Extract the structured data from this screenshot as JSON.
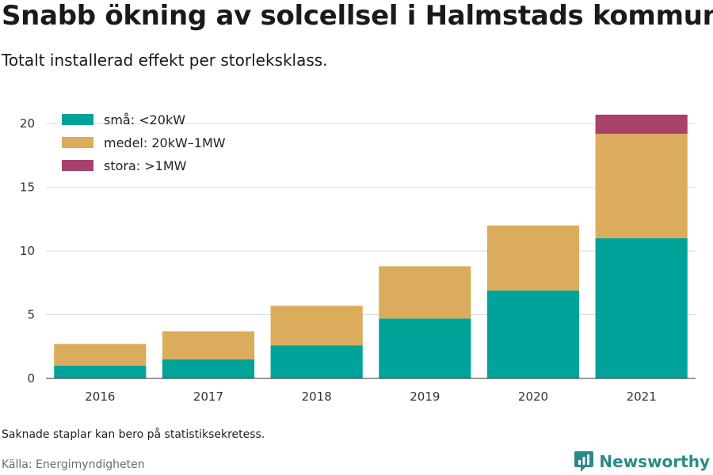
{
  "header": {
    "title": "Snabb ökning av solcellsel i Halmstads kommun",
    "subtitle": "Totalt installerad effekt per storleksklass."
  },
  "footer": {
    "note": "Saknade staplar kan bero på statistiksekretess.",
    "source": "Källa: Energimyndigheten",
    "brand": "Newsworthy"
  },
  "colors": {
    "sma": "#00a39a",
    "medel": "#dbac5b",
    "stora": "#a8416b",
    "grid": "#d9d9d9",
    "axis": "#333333",
    "brand": "#2a8a8a"
  },
  "icons": {
    "brand_logo": "newsworthy-logo-icon"
  },
  "chart_data": {
    "type": "bar",
    "stacked": true,
    "categories": [
      "2016",
      "2017",
      "2018",
      "2019",
      "2020",
      "2021"
    ],
    "series": [
      {
        "name": "små: <20kW",
        "color": "#00a39a",
        "values": [
          1.0,
          1.5,
          2.6,
          4.7,
          6.9,
          11.0
        ]
      },
      {
        "name": "medel: 20kW–1MW",
        "color": "#dbac5b",
        "values": [
          1.7,
          2.2,
          3.1,
          4.1,
          5.1,
          8.2
        ]
      },
      {
        "name": "stora: >1MW",
        "color": "#a8416b",
        "values": [
          0,
          0,
          0,
          0,
          0,
          1.5
        ]
      }
    ],
    "ylim": [
      0,
      21
    ],
    "yticks": [
      0,
      5,
      10,
      15,
      20
    ],
    "grid": true,
    "legend_position": "top-left"
  }
}
